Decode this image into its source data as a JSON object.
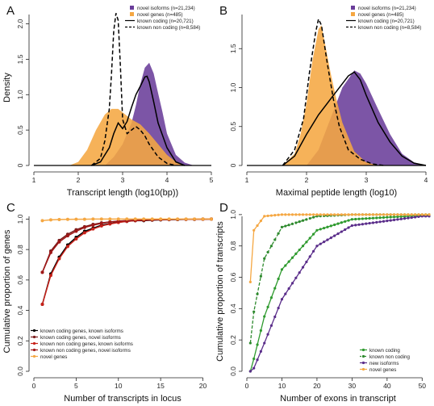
{
  "chart_data": [
    {
      "panel": "A",
      "type": "area",
      "xlabel": "Transcript length (log10(bp))",
      "ylabel": "Density",
      "xlim": [
        1,
        5
      ],
      "ylim": [
        0,
        2.2
      ],
      "xticks": [
        "1",
        "2",
        "3",
        "4",
        "5"
      ],
      "yticks": [
        "0",
        "0.5",
        "1.0",
        "1.5",
        "2.0"
      ],
      "legend_position": "top-right",
      "series": [
        {
          "name": "novel isoforms (n=21,234)",
          "style": "filled",
          "color": "#6a3d9a",
          "x": [
            2.6,
            2.8,
            3.0,
            3.2,
            3.3,
            3.4,
            3.5,
            3.6,
            3.7,
            3.8,
            3.9,
            4.0,
            4.2,
            4.4,
            4.6
          ],
          "y": [
            0.0,
            0.12,
            0.3,
            0.6,
            0.85,
            1.15,
            1.38,
            1.45,
            1.3,
            1.02,
            0.75,
            0.45,
            0.15,
            0.04,
            0.0
          ]
        },
        {
          "name": "novel genes (n=485)",
          "style": "filled",
          "color": "#f5a742",
          "x": [
            1.8,
            2.0,
            2.2,
            2.4,
            2.6,
            2.75,
            2.9,
            3.0,
            3.1,
            3.2,
            3.4,
            3.6,
            3.8,
            4.0,
            4.2,
            4.4
          ],
          "y": [
            0.0,
            0.05,
            0.22,
            0.5,
            0.72,
            0.8,
            0.8,
            0.75,
            0.7,
            0.65,
            0.58,
            0.45,
            0.3,
            0.15,
            0.05,
            0.0
          ]
        },
        {
          "name": "known coding (n=20,721)",
          "style": "solid",
          "color": "#000000",
          "x": [
            2.3,
            2.5,
            2.7,
            2.8,
            2.9,
            3.0,
            3.1,
            3.2,
            3.3,
            3.4,
            3.5,
            3.55,
            3.6,
            3.7,
            3.8,
            4.0,
            4.2,
            4.4
          ],
          "y": [
            0.0,
            0.05,
            0.25,
            0.45,
            0.6,
            0.52,
            0.62,
            0.82,
            1.0,
            1.12,
            1.25,
            1.26,
            1.18,
            0.9,
            0.6,
            0.25,
            0.05,
            0.0
          ]
        },
        {
          "name": "known non coding (n=8,584)",
          "style": "dashed",
          "color": "#000000",
          "x": [
            2.3,
            2.5,
            2.6,
            2.7,
            2.75,
            2.8,
            2.85,
            2.9,
            2.95,
            3.0,
            3.1,
            3.2,
            3.3,
            3.4,
            3.5,
            3.6,
            3.8,
            4.0,
            4.2
          ],
          "y": [
            0.0,
            0.1,
            0.35,
            0.8,
            1.3,
            1.9,
            2.15,
            2.05,
            1.4,
            0.65,
            0.45,
            0.5,
            0.55,
            0.5,
            0.42,
            0.3,
            0.12,
            0.03,
            0.0
          ]
        }
      ]
    },
    {
      "panel": "B",
      "type": "area",
      "xlabel": "Maximal peptide length (log10)",
      "ylabel": "",
      "xlim": [
        1,
        4
      ],
      "ylim": [
        0,
        2.0
      ],
      "xticks": [
        "1",
        "2",
        "3",
        "4"
      ],
      "yticks": [
        "0",
        "0.5",
        "1.0",
        "1.5"
      ],
      "legend_position": "top-right",
      "series": [
        {
          "name": "novel isoforms (n=21,234)",
          "style": "filled",
          "color": "#6a3d9a",
          "x": [
            2.0,
            2.2,
            2.4,
            2.6,
            2.8,
            2.9,
            3.0,
            3.2,
            3.4,
            3.6,
            3.8,
            4.0
          ],
          "y": [
            0.0,
            0.2,
            0.6,
            1.0,
            1.22,
            1.18,
            1.05,
            0.72,
            0.4,
            0.15,
            0.04,
            0.0
          ]
        },
        {
          "name": "novel genes (n=485)",
          "style": "filled",
          "color": "#f5a742",
          "x": [
            1.6,
            1.8,
            1.9,
            2.0,
            2.1,
            2.2,
            2.25,
            2.3,
            2.4,
            2.5,
            2.6,
            2.8,
            3.0,
            3.2
          ],
          "y": [
            0.0,
            0.15,
            0.4,
            0.8,
            1.35,
            1.75,
            1.8,
            1.6,
            1.2,
            0.85,
            0.55,
            0.18,
            0.04,
            0.0
          ]
        },
        {
          "name": "known coding (n=20,721)",
          "style": "solid",
          "color": "#000000",
          "x": [
            1.6,
            1.8,
            2.0,
            2.2,
            2.4,
            2.6,
            2.7,
            2.8,
            2.9,
            3.0,
            3.2,
            3.4,
            3.6,
            3.8,
            4.0
          ],
          "y": [
            0.0,
            0.12,
            0.4,
            0.65,
            0.85,
            1.05,
            1.15,
            1.2,
            1.1,
            0.9,
            0.55,
            0.3,
            0.12,
            0.03,
            0.0
          ]
        },
        {
          "name": "known non coding (n=8,584)",
          "style": "dashed",
          "color": "#000000",
          "x": [
            1.6,
            1.8,
            1.95,
            2.05,
            2.15,
            2.2,
            2.25,
            2.35,
            2.45,
            2.55,
            2.7,
            2.9,
            3.1,
            3.3
          ],
          "y": [
            0.0,
            0.2,
            0.6,
            1.2,
            1.7,
            1.88,
            1.8,
            1.3,
            0.85,
            0.5,
            0.2,
            0.08,
            0.02,
            0.0
          ]
        }
      ]
    },
    {
      "panel": "C",
      "type": "line",
      "xlabel": "Number of transcripts in locus",
      "ylabel": "Cumulative proportion of genes",
      "xlim": [
        0,
        21
      ],
      "ylim": [
        0,
        1.05
      ],
      "xticks": [
        "0",
        "5",
        "10",
        "15",
        "20"
      ],
      "yticks": [
        "0.0",
        "0.2",
        "0.4",
        "0.6",
        "0.8",
        "1.0"
      ],
      "legend_position": "bottom-left",
      "x": [
        1,
        2,
        3,
        4,
        5,
        6,
        7,
        8,
        9,
        10,
        11,
        12,
        13,
        14,
        15,
        16,
        17,
        18,
        19,
        20,
        21
      ],
      "series": [
        {
          "name": "known coding genes, known isoforms",
          "color": "#000000",
          "values": [
            0.44,
            0.64,
            0.75,
            0.83,
            0.88,
            0.92,
            0.94,
            0.96,
            0.97,
            0.98,
            0.985,
            0.99,
            0.99,
            0.993,
            0.995,
            0.996,
            0.997,
            0.998,
            0.998,
            0.999,
            1.0
          ]
        },
        {
          "name": "known coding genes, novel isoforms",
          "color": "#7a1a1a",
          "values": [
            0.65,
            0.79,
            0.86,
            0.9,
            0.93,
            0.95,
            0.965,
            0.975,
            0.982,
            0.987,
            0.99,
            0.993,
            0.995,
            0.996,
            0.997,
            0.998,
            0.998,
            0.999,
            0.999,
            1.0,
            1.0
          ]
        },
        {
          "name": "known non coding genes, known isoforms",
          "color": "#c82018",
          "values": [
            0.44,
            0.63,
            0.74,
            0.82,
            0.87,
            0.91,
            0.935,
            0.955,
            0.968,
            0.978,
            0.985,
            0.99,
            0.992,
            0.994,
            0.996,
            0.997,
            0.998,
            0.998,
            0.999,
            0.999,
            1.0
          ]
        },
        {
          "name": "known non coding genes, novel isoforms",
          "color": "#a01818",
          "values": [
            0.65,
            0.78,
            0.85,
            0.89,
            0.92,
            0.945,
            0.96,
            0.972,
            0.98,
            0.986,
            0.99,
            0.993,
            0.995,
            0.996,
            0.997,
            0.998,
            0.998,
            0.999,
            0.999,
            1.0,
            1.0
          ]
        },
        {
          "name": "novel genes",
          "color": "#f5a742",
          "values": [
            0.99,
            0.995,
            0.997,
            0.998,
            0.999,
            0.999,
            1.0,
            1.0,
            1.0,
            1.0,
            1.0,
            1.0,
            1.0,
            1.0,
            1.0,
            1.0,
            1.0,
            1.0,
            1.0,
            1.0,
            1.0
          ]
        }
      ]
    },
    {
      "panel": "D",
      "type": "line",
      "xlabel": "Number of exons in transcript",
      "ylabel": "Cumulative proportion of transcripts",
      "xlim": [
        0,
        52
      ],
      "ylim": [
        0,
        1.02
      ],
      "xticks": [
        "0",
        "10",
        "20",
        "30",
        "40",
        "50"
      ],
      "yticks": [
        "0.0",
        "0.2",
        "0.4",
        "0.6",
        "0.8",
        "1.0"
      ],
      "legend_position": "bottom-right",
      "series": [
        {
          "name": "known coding",
          "color": "#2e9a2e",
          "rate": 0.115,
          "shape": 1.25
        },
        {
          "name": "known non coding",
          "color": "#2e8a2e",
          "rate": 0.3,
          "shape": 0.95,
          "dashed": true
        },
        {
          "name": "new isoforms",
          "color": "#5a2d8a",
          "rate": 0.085,
          "shape": 1.45
        },
        {
          "name": "novel genes",
          "color": "#f5a742",
          "rate": 1.0,
          "shape": 0.8
        }
      ],
      "sample_points": [
        {
          "x": 1,
          "known coding": 0.0,
          "known non coding": 0.18,
          "new isoforms": 0.0,
          "novel genes": 0.57
        },
        {
          "x": 2,
          "known coding": 0.08,
          "known non coding": 0.38,
          "new isoforms": 0.02,
          "novel genes": 0.9
        },
        {
          "x": 5,
          "known coding": 0.35,
          "known non coding": 0.72,
          "new isoforms": 0.18,
          "novel genes": 0.99
        },
        {
          "x": 10,
          "known coding": 0.65,
          "known non coding": 0.92,
          "new isoforms": 0.46,
          "novel genes": 1.0
        },
        {
          "x": 20,
          "known coding": 0.9,
          "known non coding": 0.99,
          "new isoforms": 0.8,
          "novel genes": 1.0
        },
        {
          "x": 30,
          "known coding": 0.97,
          "known non coding": 1.0,
          "new isoforms": 0.93,
          "novel genes": 1.0
        },
        {
          "x": 50,
          "known coding": 0.995,
          "known non coding": 1.0,
          "new isoforms": 0.99,
          "novel genes": 1.0
        }
      ]
    }
  ]
}
